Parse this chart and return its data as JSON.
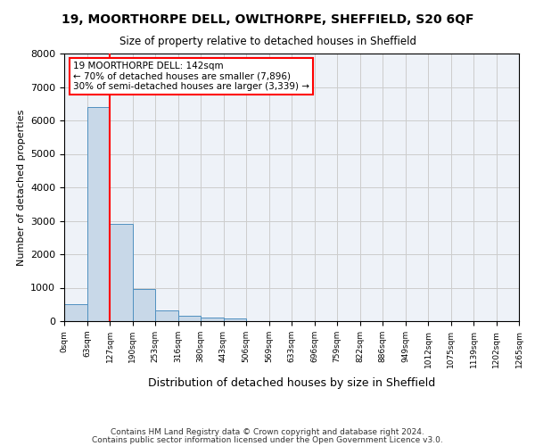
{
  "title": "19, MOORTHORPE DELL, OWLTHORPE, SHEFFIELD, S20 6QF",
  "subtitle": "Size of property relative to detached houses in Sheffield",
  "xlabel": "Distribution of detached houses by size in Sheffield",
  "ylabel": "Number of detached properties",
  "footer_line1": "Contains HM Land Registry data © Crown copyright and database right 2024.",
  "footer_line2": "Contains public sector information licensed under the Open Government Licence v3.0.",
  "bin_labels": [
    "0sqm",
    "63sqm",
    "127sqm",
    "190sqm",
    "253sqm",
    "316sqm",
    "380sqm",
    "443sqm",
    "506sqm",
    "569sqm",
    "633sqm",
    "696sqm",
    "759sqm",
    "822sqm",
    "886sqm",
    "949sqm",
    "1012sqm",
    "1075sqm",
    "1139sqm",
    "1202sqm",
    "1265sqm"
  ],
  "bar_values": [
    500,
    6400,
    2900,
    950,
    330,
    160,
    100,
    80,
    0,
    0,
    0,
    0,
    0,
    0,
    0,
    0,
    0,
    0,
    0,
    0
  ],
  "bar_color": "#c8d8e8",
  "bar_edge_color": "#5090c0",
  "grid_color": "#cccccc",
  "background_color": "#eef2f8",
  "red_line_x": 2,
  "annotation_text": "19 MOORTHORPE DELL: 142sqm\n← 70% of detached houses are smaller (7,896)\n30% of semi-detached houses are larger (3,339) →",
  "annotation_box_color": "white",
  "annotation_box_edge": "red",
  "ylim": [
    0,
    8000
  ],
  "yticks": [
    0,
    1000,
    2000,
    3000,
    4000,
    5000,
    6000,
    7000,
    8000
  ]
}
